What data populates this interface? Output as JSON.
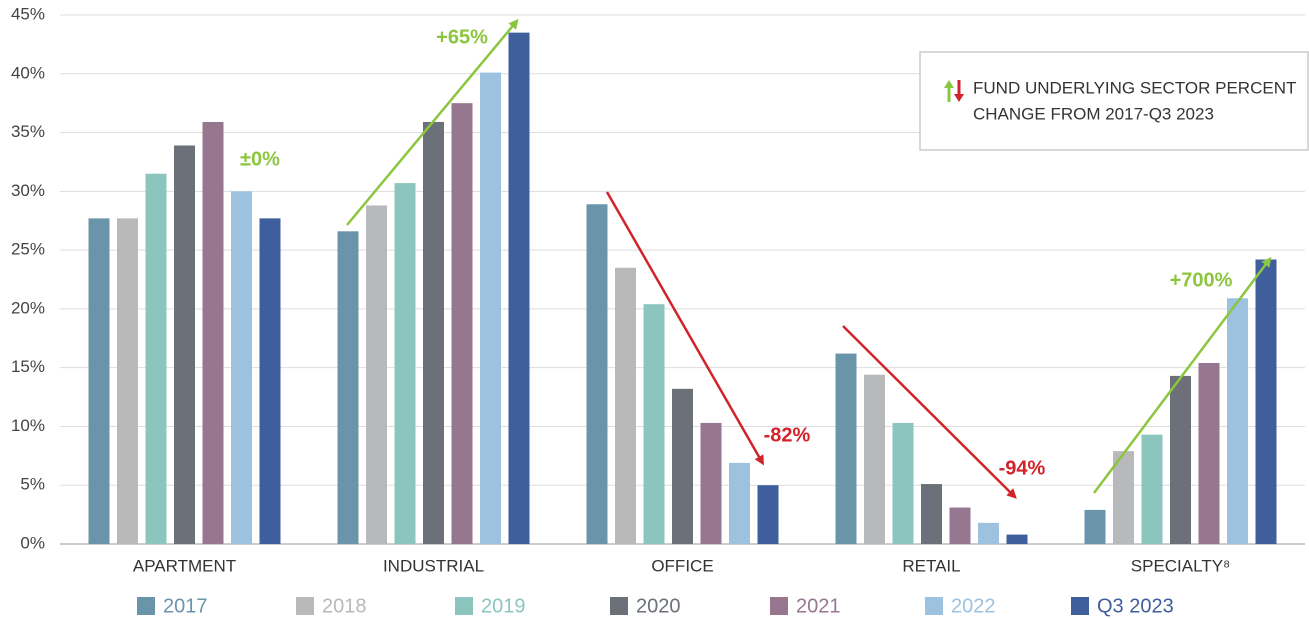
{
  "chart_data": {
    "type": "bar",
    "categories": [
      "APARTMENT",
      "INDUSTRIAL",
      "OFFICE",
      "RETAIL",
      "SPECIALTY⁸"
    ],
    "series": [
      {
        "name": "2017",
        "color": "#6a94aa",
        "values": [
          27.7,
          26.6,
          28.9,
          16.2,
          2.9
        ]
      },
      {
        "name": "2018",
        "color": "#b7b9ba",
        "values": [
          27.7,
          28.8,
          23.5,
          14.4,
          7.9
        ]
      },
      {
        "name": "2019",
        "color": "#8cc5bd",
        "values": [
          31.5,
          30.7,
          20.4,
          10.3,
          9.3
        ]
      },
      {
        "name": "2020",
        "color": "#6b7079",
        "values": [
          33.9,
          35.9,
          13.2,
          5.1,
          14.3
        ]
      },
      {
        "name": "2021",
        "color": "#977790",
        "values": [
          35.9,
          37.5,
          10.3,
          3.1,
          15.4
        ]
      },
      {
        "name": "2022",
        "color": "#9cc2e0",
        "values": [
          30.0,
          40.1,
          6.9,
          1.8,
          20.9
        ]
      },
      {
        "name": "Q3 2023",
        "color": "#3f5e9c",
        "values": [
          27.7,
          43.5,
          5.0,
          0.8,
          24.2
        ]
      }
    ],
    "ylim": [
      0,
      45
    ],
    "yticks": [
      {
        "value": 0,
        "label": "0%"
      },
      {
        "value": 5,
        "label": "5%"
      },
      {
        "value": 10,
        "label": "10%"
      },
      {
        "value": 15,
        "label": "15%"
      },
      {
        "value": 20,
        "label": "20%"
      },
      {
        "value": 25,
        "label": "25%"
      },
      {
        "value": 30,
        "label": "30%"
      },
      {
        "value": 35,
        "label": "35%"
      },
      {
        "value": 40,
        "label": "40%"
      },
      {
        "value": 45,
        "label": "45%"
      }
    ],
    "grid": true,
    "annotations": [
      "±0%",
      "+65%",
      "-82%",
      "-94%",
      "+700%"
    ],
    "note": [
      "FUND UNDERLYING SECTOR PERCENT",
      "CHANGE FROM 2017-Q3 2023"
    ]
  }
}
